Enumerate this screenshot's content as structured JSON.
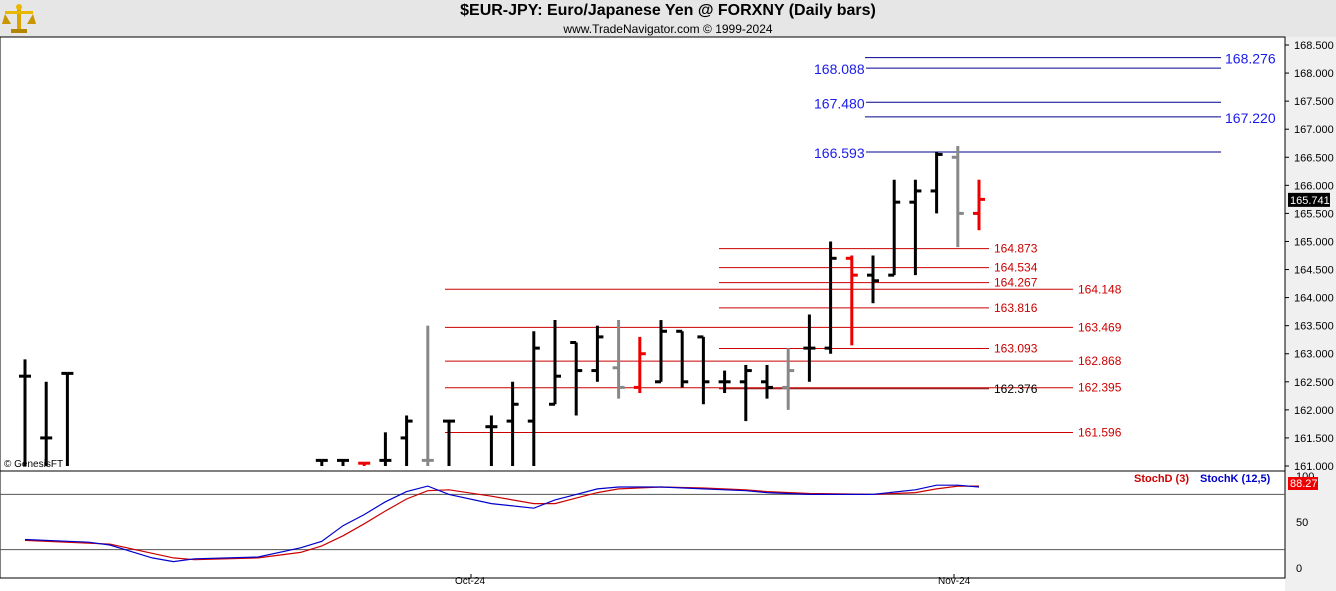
{
  "header": {
    "title": "$EUR-JPY:  Euro/Japanese Yen @ FORXNY  (Daily bars)",
    "subtitle": "www.TradeNavigator.com © 1999-2024",
    "logo_icon": "gold-scale-logo-icon"
  },
  "watermark": "© GenesisFT",
  "chart_data": {
    "type": "ohlc",
    "price_panel": {
      "ylim": [
        161.0,
        168.5
      ],
      "y_ticks": [
        "168.500",
        "168.000",
        "167.500",
        "167.000",
        "166.500",
        "166.000",
        "165.500",
        "165.000",
        "164.500",
        "164.000",
        "163.500",
        "163.000",
        "162.500",
        "162.000",
        "161.500",
        "161.000"
      ],
      "last_price_label": "165.741",
      "last_price": 165.741,
      "x_labels": [
        "Oct-24",
        "Nov-24"
      ],
      "bars": [
        {
          "slot": 0,
          "o": 162.6,
          "h": 162.9,
          "l": 161.0,
          "c": 162.6,
          "color": "black"
        },
        {
          "slot": 1,
          "o": 161.5,
          "h": 162.5,
          "l": 161.0,
          "c": 161.5,
          "color": "black"
        },
        {
          "slot": 2,
          "o": 162.65,
          "h": 162.65,
          "l": 161.0,
          "c": 162.65,
          "color": "black"
        },
        {
          "slot": 14,
          "o": 161.1,
          "h": 161.1,
          "l": 161.0,
          "c": 161.1,
          "color": "black"
        },
        {
          "slot": 15,
          "o": 161.1,
          "h": 161.1,
          "l": 161.0,
          "c": 161.1,
          "color": "black"
        },
        {
          "slot": 16,
          "o": 161.05,
          "h": 161.05,
          "l": 161.0,
          "c": 161.05,
          "color": "red"
        },
        {
          "slot": 17,
          "o": 161.1,
          "h": 161.6,
          "l": 161.0,
          "c": 161.1,
          "color": "black"
        },
        {
          "slot": 18,
          "o": 161.5,
          "h": 161.9,
          "l": 161.0,
          "c": 161.8,
          "color": "black"
        },
        {
          "slot": 19,
          "o": 161.1,
          "h": 163.5,
          "l": 161.0,
          "c": 161.1,
          "color": "gray"
        },
        {
          "slot": 20,
          "o": 161.8,
          "h": 161.8,
          "l": 161.0,
          "c": 161.8,
          "color": "black"
        },
        {
          "slot": 22,
          "o": 161.7,
          "h": 161.9,
          "l": 161.0,
          "c": 161.7,
          "color": "black"
        },
        {
          "slot": 23,
          "o": 161.8,
          "h": 162.5,
          "l": 161.0,
          "c": 162.1,
          "color": "black"
        },
        {
          "slot": 24,
          "o": 161.8,
          "h": 163.4,
          "l": 161.0,
          "c": 163.1,
          "color": "black"
        },
        {
          "slot": 25,
          "o": 162.1,
          "h": 163.6,
          "l": 162.1,
          "c": 162.6,
          "color": "black"
        },
        {
          "slot": 26,
          "o": 163.2,
          "h": 163.2,
          "l": 161.9,
          "c": 162.7,
          "color": "black"
        },
        {
          "slot": 27,
          "o": 162.7,
          "h": 163.5,
          "l": 162.5,
          "c": 163.3,
          "color": "black"
        },
        {
          "slot": 28,
          "o": 162.75,
          "h": 163.6,
          "l": 162.2,
          "c": 162.4,
          "color": "gray"
        },
        {
          "slot": 29,
          "o": 162.4,
          "h": 163.3,
          "l": 162.3,
          "c": 163.0,
          "color": "red"
        },
        {
          "slot": 30,
          "o": 162.5,
          "h": 163.6,
          "l": 162.5,
          "c": 163.4,
          "color": "black"
        },
        {
          "slot": 31,
          "o": 163.4,
          "h": 163.4,
          "l": 162.4,
          "c": 162.5,
          "color": "black"
        },
        {
          "slot": 32,
          "o": 163.3,
          "h": 163.3,
          "l": 162.1,
          "c": 162.5,
          "color": "black"
        },
        {
          "slot": 33,
          "o": 162.5,
          "h": 162.7,
          "l": 162.3,
          "c": 162.5,
          "color": "black"
        },
        {
          "slot": 34,
          "o": 162.5,
          "h": 162.8,
          "l": 161.8,
          "c": 162.7,
          "color": "black"
        },
        {
          "slot": 35,
          "o": 162.5,
          "h": 162.8,
          "l": 162.2,
          "c": 162.4,
          "color": "black"
        },
        {
          "slot": 36,
          "o": 162.4,
          "h": 163.1,
          "l": 162.0,
          "c": 162.7,
          "color": "gray"
        },
        {
          "slot": 37,
          "o": 163.1,
          "h": 163.7,
          "l": 162.5,
          "c": 163.1,
          "color": "black"
        },
        {
          "slot": 38,
          "o": 163.1,
          "h": 165.0,
          "l": 163.0,
          "c": 164.7,
          "color": "black"
        },
        {
          "slot": 39,
          "o": 164.7,
          "h": 164.75,
          "l": 163.15,
          "c": 164.4,
          "color": "red"
        },
        {
          "slot": 40,
          "o": 164.4,
          "h": 164.75,
          "l": 163.9,
          "c": 164.3,
          "color": "black"
        },
        {
          "slot": 41,
          "o": 164.4,
          "h": 166.1,
          "l": 164.4,
          "c": 165.7,
          "color": "black"
        },
        {
          "slot": 42,
          "o": 165.7,
          "h": 166.1,
          "l": 164.4,
          "c": 165.9,
          "color": "black"
        },
        {
          "slot": 43,
          "o": 165.9,
          "h": 166.6,
          "l": 165.5,
          "c": 166.55,
          "color": "black"
        },
        {
          "slot": 44,
          "o": 166.5,
          "h": 166.7,
          "l": 164.9,
          "c": 165.5,
          "color": "gray"
        },
        {
          "slot": 45,
          "o": 165.5,
          "h": 166.1,
          "l": 165.2,
          "c": 165.75,
          "color": "red"
        }
      ],
      "blue_levels": [
        {
          "value": 168.276,
          "label": "168.276",
          "side": "right"
        },
        {
          "value": 168.088,
          "label": "168.088",
          "side": "left"
        },
        {
          "value": 167.48,
          "label": "167.480",
          "side": "left"
        },
        {
          "value": 167.22,
          "label": "167.220",
          "side": "right"
        },
        {
          "value": 166.593,
          "label": "166.593",
          "side": "left"
        }
      ],
      "red_levels": [
        {
          "value": 164.873,
          "label": "164.873",
          "group": "short",
          "color": "red"
        },
        {
          "value": 164.534,
          "label": "164.534",
          "group": "short",
          "color": "red"
        },
        {
          "value": 164.267,
          "label": "164.267",
          "group": "short",
          "color": "red"
        },
        {
          "value": 164.148,
          "label": "164.148",
          "group": "long",
          "color": "red"
        },
        {
          "value": 163.816,
          "label": "163.816",
          "group": "short",
          "color": "red"
        },
        {
          "value": 163.469,
          "label": "163.469",
          "group": "long",
          "color": "red"
        },
        {
          "value": 163.093,
          "label": "163.093",
          "group": "short",
          "color": "red"
        },
        {
          "value": 162.868,
          "label": "162.868",
          "group": "long",
          "color": "red"
        },
        {
          "value": 162.395,
          "label": "162.395",
          "group": "long",
          "color": "red"
        },
        {
          "value": 162.376,
          "label": "162.376",
          "group": "short",
          "color": "black"
        },
        {
          "value": 161.596,
          "label": "161.596",
          "group": "long",
          "color": "red"
        }
      ]
    },
    "stoch_panel": {
      "ylim": [
        0,
        100
      ],
      "y_ticks": [
        "100",
        "50",
        "0"
      ],
      "levels": [
        80,
        20
      ],
      "last_value_label": "88.27",
      "legend": [
        {
          "name": "StochD (3)",
          "color": "#cc0000"
        },
        {
          "name": "StochK (12,5)",
          "color": "#0000cc"
        }
      ],
      "stochK": [
        [
          0,
          31
        ],
        [
          3,
          28
        ],
        [
          4,
          25
        ],
        [
          6,
          11
        ],
        [
          7,
          7
        ],
        [
          8,
          10
        ],
        [
          11,
          12
        ],
        [
          13,
          22
        ],
        [
          14,
          29
        ],
        [
          15,
          46
        ],
        [
          16,
          58
        ],
        [
          17,
          72
        ],
        [
          18,
          83
        ],
        [
          19,
          89
        ],
        [
          20,
          80
        ],
        [
          22,
          70
        ],
        [
          24,
          65
        ],
        [
          25,
          74
        ],
        [
          26,
          80
        ],
        [
          27,
          86
        ],
        [
          28,
          88
        ],
        [
          30,
          88
        ],
        [
          32,
          86
        ],
        [
          34,
          84
        ],
        [
          35,
          82
        ],
        [
          37,
          80
        ],
        [
          40,
          80
        ],
        [
          42,
          85
        ],
        [
          43,
          90
        ],
        [
          44,
          90
        ],
        [
          45,
          88
        ]
      ],
      "stochD": [
        [
          0,
          30
        ],
        [
          3,
          27
        ],
        [
          4,
          26
        ],
        [
          6,
          16
        ],
        [
          7,
          11
        ],
        [
          8,
          9
        ],
        [
          11,
          11
        ],
        [
          13,
          17
        ],
        [
          14,
          24
        ],
        [
          15,
          35
        ],
        [
          16,
          48
        ],
        [
          17,
          62
        ],
        [
          18,
          75
        ],
        [
          19,
          84
        ],
        [
          20,
          85
        ],
        [
          22,
          78
        ],
        [
          24,
          70
        ],
        [
          25,
          70
        ],
        [
          26,
          76
        ],
        [
          27,
          82
        ],
        [
          28,
          86
        ],
        [
          30,
          88
        ],
        [
          32,
          87
        ],
        [
          34,
          85
        ],
        [
          35,
          83
        ],
        [
          37,
          81
        ],
        [
          40,
          80
        ],
        [
          42,
          82
        ],
        [
          43,
          86
        ],
        [
          44,
          89
        ],
        [
          45,
          89
        ]
      ]
    }
  }
}
